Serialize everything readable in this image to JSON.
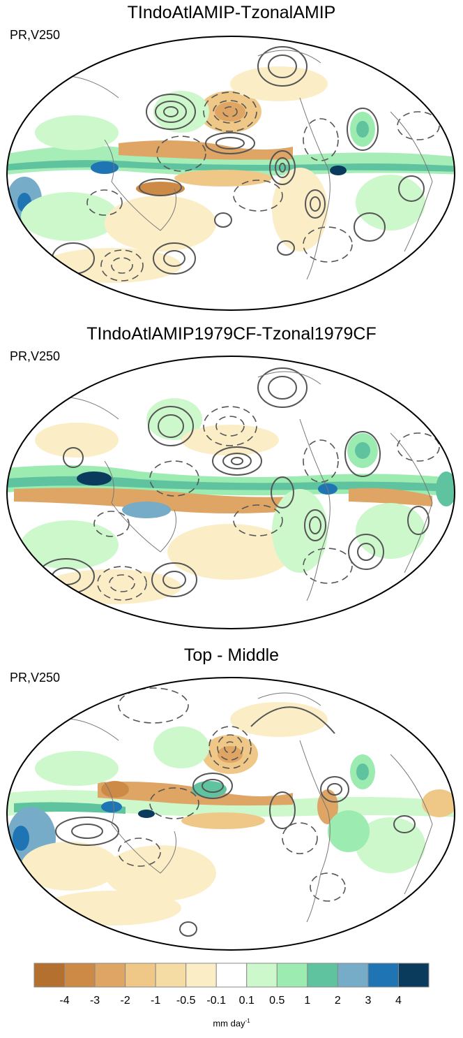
{
  "panels": [
    {
      "title": "TIndoAtlAMIP-TzonalAMIP",
      "subtitle": "PR,V250"
    },
    {
      "title": "TIndoAtlAMIP1979CF-Tzonal1979CF",
      "subtitle": "PR,V250"
    },
    {
      "title": "Top - Middle",
      "subtitle": "PR,V250"
    }
  ],
  "colorbar": {
    "colors": [
      "#b3702e",
      "#cd8a46",
      "#dea565",
      "#efc887",
      "#f4dca4",
      "#fbeec6",
      "#ffffff",
      "#ccf8cc",
      "#9cebb0",
      "#5fc3a0",
      "#76acc8",
      "#1f74b4",
      "#0a3a5c"
    ],
    "labels": [
      "-4",
      "-3",
      "-2",
      "-1",
      "-0.5",
      "-0.1",
      "0.1",
      "0.5",
      "1",
      "2",
      "3",
      "4"
    ],
    "units": "mm day",
    "units_exp": "-1"
  }
}
